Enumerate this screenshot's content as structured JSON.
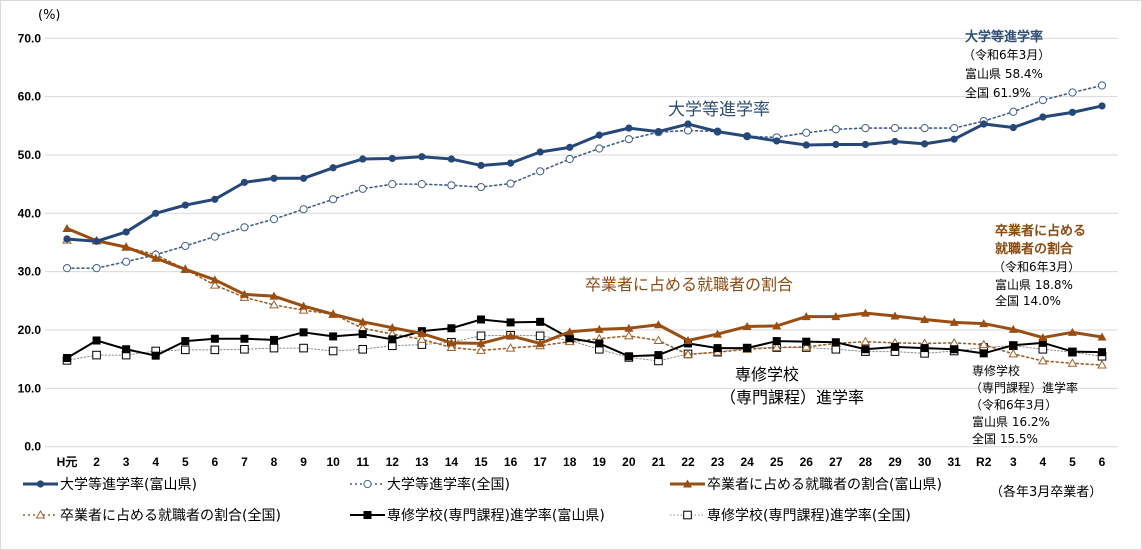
{
  "chart_data": {
    "type": "line",
    "title": "",
    "xlabel": "",
    "ylabel": "(%)",
    "ylim": [
      0,
      70
    ],
    "yticks": [
      "0.0",
      "10.0",
      "20.0",
      "30.0",
      "40.0",
      "50.0",
      "60.0",
      "70.0"
    ],
    "grid": true,
    "legend_position": "bottom",
    "note": "（各年3月卒業者）",
    "categories": [
      "H元",
      "2",
      "3",
      "4",
      "5",
      "6",
      "7",
      "8",
      "9",
      "10",
      "11",
      "12",
      "13",
      "14",
      "15",
      "16",
      "17",
      "18",
      "19",
      "20",
      "21",
      "22",
      "23",
      "24",
      "25",
      "26",
      "27",
      "28",
      "29",
      "30",
      "31",
      "R2",
      "3",
      "4",
      "5",
      "6"
    ],
    "series": [
      {
        "name": "大学等進学率(富山県)",
        "color": "#264878",
        "style": "solid-thick",
        "marker": "filled-circle",
        "values": [
          35.6,
          35.2,
          36.8,
          40.0,
          41.4,
          42.4,
          45.3,
          46.0,
          46.0,
          47.8,
          49.3,
          49.4,
          49.7,
          49.3,
          48.2,
          48.6,
          50.5,
          51.3,
          53.4,
          54.6,
          54.0,
          55.3,
          54.0,
          53.2,
          52.4,
          51.7,
          51.8,
          51.8,
          52.3,
          51.9,
          52.7,
          55.3,
          54.7,
          56.5,
          57.3,
          58.4
        ]
      },
      {
        "name": "大学等進学率(全国)",
        "color": "#44608a",
        "style": "dotted",
        "marker": "open-circle",
        "values": [
          30.6,
          30.6,
          31.7,
          32.9,
          34.4,
          36.0,
          37.6,
          39.0,
          40.7,
          42.4,
          44.2,
          45.0,
          45.0,
          44.8,
          44.5,
          45.1,
          47.2,
          49.3,
          51.1,
          52.7,
          53.9,
          54.2,
          54.0,
          53.2,
          53.0,
          53.8,
          54.4,
          54.6,
          54.6,
          54.6,
          54.6,
          55.8,
          57.4,
          59.4,
          60.7,
          61.9
        ]
      },
      {
        "name": "卒業者に占める就職者の割合(富山県)",
        "color": "#9a4e12",
        "style": "solid-thick",
        "marker": "filled-triangle",
        "values": [
          37.4,
          35.3,
          34.2,
          32.3,
          30.4,
          28.6,
          26.1,
          25.8,
          24.1,
          22.7,
          21.4,
          20.4,
          19.4,
          17.8,
          17.7,
          19.0,
          17.7,
          19.7,
          20.1,
          20.3,
          20.9,
          18.2,
          19.3,
          20.6,
          20.7,
          22.3,
          22.3,
          22.9,
          22.4,
          21.8,
          21.3,
          21.1,
          20.1,
          18.7,
          19.6,
          18.8
        ]
      },
      {
        "name": "卒業者に占める就職者の割合(全国)",
        "color": "#a0622c",
        "style": "dotted",
        "marker": "open-triangle",
        "values": [
          35.4,
          35.3,
          34.2,
          32.9,
          30.4,
          27.7,
          25.6,
          24.3,
          23.4,
          22.7,
          20.3,
          19.3,
          18.4,
          17.0,
          16.5,
          16.9,
          17.3,
          18.0,
          18.5,
          19.0,
          18.2,
          15.8,
          16.2,
          16.7,
          17.0,
          17.1,
          17.7,
          18.0,
          17.8,
          17.7,
          17.8,
          17.5,
          15.9,
          14.7,
          14.3,
          14.0
        ]
      },
      {
        "name": "専修学校(専門課程)進学率(富山県)",
        "color": "#000000",
        "style": "solid",
        "marker": "filled-square",
        "values": [
          15.2,
          18.2,
          16.7,
          15.6,
          18.1,
          18.5,
          18.5,
          18.3,
          19.6,
          18.9,
          19.3,
          18.4,
          19.8,
          20.3,
          21.8,
          21.3,
          21.4,
          18.6,
          17.7,
          15.5,
          15.7,
          17.7,
          16.9,
          16.9,
          18.1,
          18.0,
          17.9,
          16.7,
          17.1,
          16.9,
          16.7,
          16.0,
          17.4,
          17.8,
          16.3,
          16.2
        ]
      },
      {
        "name": "専修学校(専門課程)進学率(全国)",
        "color": "#8c8c8c",
        "style": "dotted-thin",
        "marker": "open-square",
        "values": [
          14.8,
          15.7,
          15.7,
          16.4,
          16.6,
          16.6,
          16.7,
          16.9,
          16.9,
          16.4,
          16.7,
          17.3,
          17.5,
          17.9,
          19.0,
          19.1,
          19.0,
          18.2,
          16.7,
          15.3,
          14.7,
          15.9,
          16.2,
          16.9,
          17.0,
          17.0,
          16.7,
          16.3,
          16.3,
          16.0,
          16.4,
          17.0,
          17.3,
          16.7,
          16.2,
          15.5
        ]
      }
    ],
    "annotations": {
      "university_label": "大学等進学率",
      "employment_label": "卒業者に占める就職者の割合",
      "vocational_label_line1": "専修学校",
      "vocational_label_line2": "（専門課程）進学率",
      "university_box": {
        "title": "大学等進学率",
        "period": "（令和6年3月）",
        "pref": "富山県  58.4%",
        "national": "全国  61.9%"
      },
      "employment_box": {
        "title_line1": "卒業者に占める",
        "title_line2": "就職者の割合",
        "period": "（令和6年3月）",
        "pref": "富山県  18.8%",
        "national": "全国  14.0%"
      },
      "vocational_box": {
        "title_line1": "専修学校",
        "title_line2": "（専門課程）進学率",
        "period": "（令和6年3月）",
        "pref": "富山県  16.2%",
        "national": "全国  15.5%"
      }
    }
  }
}
